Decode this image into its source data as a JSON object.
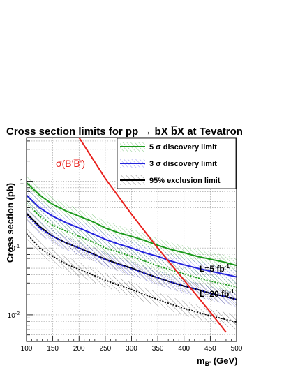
{
  "chart_data": {
    "type": "line",
    "title": "Cross section limits for pp → bX b̅X at Tevatron",
    "xlabel": "m_B' (GeV)",
    "ylabel": "Cross section (pb)",
    "x_scale": "linear",
    "y_scale": "log",
    "xlim": [
      100,
      500
    ],
    "ylim": [
      0.004,
      4.5
    ],
    "grid": true,
    "legend_position": "top-right",
    "x_ticks": [
      "100",
      "150",
      "200",
      "250",
      "300",
      "350",
      "400",
      "450",
      "500"
    ],
    "y_ticks": [
      "1",
      "10^-1",
      "10^-2"
    ],
    "legend": [
      {
        "label": "5 σ discovery limit",
        "color": "#1a9a1a"
      },
      {
        "label": "3 σ discovery limit",
        "color": "#2222dd"
      },
      {
        "label": "95% exclusion limit",
        "color": "#000000"
      }
    ],
    "annotations": {
      "sigma_label": "σ(B'B̅')",
      "l5": "L=5 fb",
      "l5_sup": "-1",
      "l20": "L=20 fb",
      "l20_sup": "-1"
    },
    "x": [
      100,
      125,
      150,
      175,
      200,
      225,
      250,
      275,
      300,
      325,
      350,
      375,
      400,
      425,
      450,
      475,
      500
    ],
    "series": [
      {
        "name": "5 σ discovery limit",
        "group": "L=5 fb-1",
        "color": "#1a9a1a",
        "dash": false,
        "values": [
          0.95,
          0.62,
          0.45,
          0.36,
          0.3,
          0.25,
          0.2,
          0.17,
          0.15,
          0.13,
          0.11,
          0.095,
          0.085,
          0.075,
          0.068,
          0.062,
          0.055
        ]
      },
      {
        "name": "3 σ discovery limit",
        "group": "L=5 fb-1",
        "color": "#2222dd",
        "dash": false,
        "values": [
          0.62,
          0.4,
          0.3,
          0.24,
          0.2,
          0.165,
          0.135,
          0.115,
          0.1,
          0.085,
          0.075,
          0.064,
          0.056,
          0.05,
          0.045,
          0.041,
          0.037
        ]
      },
      {
        "name": "95% exclusion limit",
        "group": "L=5 fb-1",
        "color": "#000000",
        "dash": false,
        "values": [
          0.33,
          0.21,
          0.15,
          0.12,
          0.1,
          0.083,
          0.068,
          0.058,
          0.05,
          0.042,
          0.036,
          0.031,
          0.027,
          0.024,
          0.021,
          0.019,
          0.017
        ]
      },
      {
        "name": "5 σ discovery limit",
        "group": "L=20 fb-1",
        "color": "#1a9a1a",
        "dash": true,
        "values": [
          0.48,
          0.3,
          0.22,
          0.18,
          0.15,
          0.125,
          0.1,
          0.087,
          0.075,
          0.064,
          0.054,
          0.047,
          0.041,
          0.036,
          0.032,
          0.029,
          0.026
        ]
      },
      {
        "name": "3 σ discovery limit",
        "group": "L=20 fb-1",
        "color": "#2222dd",
        "dash": true,
        "values": [
          0.31,
          0.2,
          0.15,
          0.12,
          0.1,
          0.082,
          0.067,
          0.057,
          0.049,
          0.042,
          0.036,
          0.031,
          0.027,
          0.024,
          0.021,
          0.019,
          0.017
        ]
      },
      {
        "name": "95% exclusion limit",
        "group": "L=20 fb-1",
        "color": "#000000",
        "dash": true,
        "values": [
          0.165,
          0.1,
          0.075,
          0.058,
          0.048,
          0.04,
          0.033,
          0.028,
          0.024,
          0.02,
          0.017,
          0.0145,
          0.0125,
          0.011,
          0.0097,
          0.0087,
          0.0078
        ]
      }
    ],
    "theory": {
      "name": "σ(B'B̅')",
      "color": "#e8211d",
      "x": [
        200,
        250,
        300,
        350,
        400,
        450,
        480
      ],
      "values": [
        4.5,
        1.1,
        0.32,
        0.1,
        0.033,
        0.011,
        0.0055
      ]
    }
  }
}
